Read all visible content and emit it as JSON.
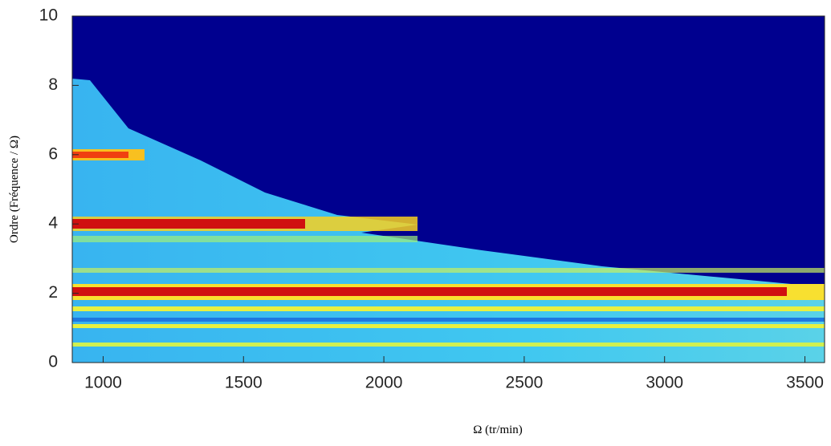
{
  "chart_data": {
    "type": "heatmap",
    "xlabel": "Ω (tr/min)",
    "ylabel": "Ordre (Fréquence / Ω)",
    "xlim": [
      890,
      3570
    ],
    "xticks": [
      1000,
      1500,
      2000,
      2500,
      3000,
      3500
    ],
    "ylim": [
      0,
      10
    ],
    "yticks": [
      0,
      2,
      4,
      6,
      8,
      10
    ],
    "colormap": "jet"
  }
}
